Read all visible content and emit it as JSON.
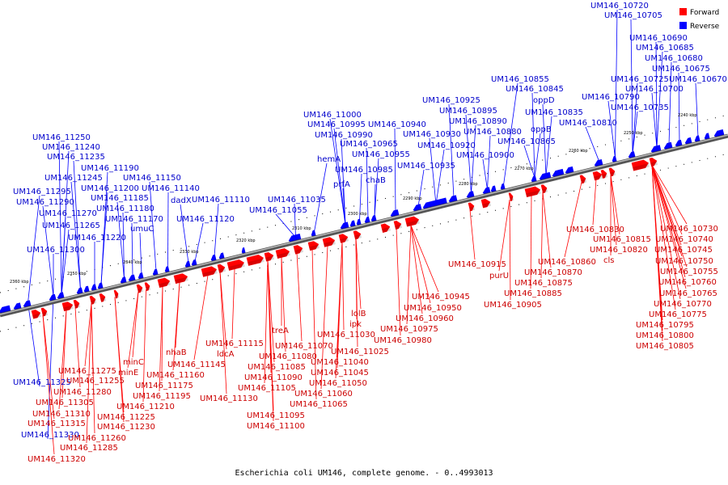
{
  "caption": "Escherichia coli UM146, complete genome. - 0..4993013",
  "legend": {
    "forward_label": "Forward",
    "reverse_label": "Reverse",
    "forward_color": "#ff0000",
    "reverse_color": "#0000ff"
  },
  "ticks": [
    "2360 kbp",
    "2350 kbp",
    "2340 kbp",
    "2330 kbp",
    "2320 kbp",
    "2310 kbp",
    "2300 kbp",
    "2290 kbp",
    "2280 kbp",
    "2270 kbp",
    "2260 kbp",
    "2250 kbp",
    "2240 kbp"
  ],
  "reverse_labels": [
    "UM146_10720",
    "UM146_10705",
    "UM146_10690",
    "UM146_10685",
    "UM146_10680",
    "UM146_10675",
    "UM146_10725",
    "UM146_10670",
    "UM146_10700",
    "UM146_10855",
    "UM146_10845",
    "UM146_10790",
    "UM146_10735",
    "oppD",
    "UM146_10835",
    "UM146_10925",
    "UM146_10895",
    "UM146_10810",
    "UM146_10890",
    "oppB",
    "UM146_11000",
    "UM146_10995",
    "UM146_10940",
    "UM146_10930",
    "UM146_10880",
    "UM146_10865",
    "UM146_10990",
    "UM146_10965",
    "UM146_10920",
    "UM146_10900",
    "hemA",
    "UM146_10955",
    "UM146_10935",
    "prfA",
    "UM146_10985",
    "chaB",
    "UM146_11035",
    "UM146_11055",
    "UM146_11250",
    "UM146_11240",
    "UM146_11235",
    "UM146_11190",
    "UM146_11245",
    "UM146_11150",
    "UM146_11295",
    "UM146_11200",
    "UM146_11140",
    "UM146_11290",
    "UM146_11185",
    "dadX",
    "UM146_11110",
    "UM146_11270",
    "UM146_11180",
    "UM146_11265",
    "UM146_11170",
    "UM146_11120",
    "umuC",
    "UM146_11220",
    "UM146_11300",
    "UM146_11325",
    "UM146_11330"
  ],
  "forward_labels": [
    "UM146_10730",
    "UM146_10830",
    "UM146_10740",
    "UM146_10815",
    "UM146_10745",
    "UM146_10820",
    "UM146_10750",
    "cls",
    "UM146_10860",
    "UM146_10915",
    "UM146_10755",
    "UM146_10870",
    "purU",
    "UM146_10760",
    "UM146_10875",
    "UM146_10765",
    "UM146_10885",
    "UM146_10770",
    "UM146_10905",
    "UM146_10945",
    "UM146_10775",
    "UM146_10950",
    "lolB",
    "UM146_10960",
    "ipk",
    "UM146_10795",
    "UM146_10975",
    "treA",
    "UM146_11030",
    "UM146_10800",
    "UM146_10980",
    "UM146_10805",
    "UM146_11115",
    "UM146_11070",
    "UM146_11025",
    "nhaB",
    "ldcA",
    "UM146_11080",
    "UM146_11040",
    "minC",
    "UM146_11145",
    "UM146_11085",
    "UM146_11045",
    "UM146_11275",
    "minE",
    "UM146_11160",
    "UM146_11090",
    "UM146_11050",
    "UM146_11255",
    "UM146_11175",
    "UM146_11105",
    "UM146_11060",
    "UM146_11280",
    "UM146_11195",
    "UM146_11130",
    "UM146_11065",
    "UM146_11305",
    "UM146_11210",
    "UM146_11095",
    "UM146_11310",
    "UM146_11225",
    "UM146_11100",
    "UM146_11315",
    "UM146_11230",
    "UM146_11260",
    "UM146_11285",
    "UM146_11320"
  ]
}
